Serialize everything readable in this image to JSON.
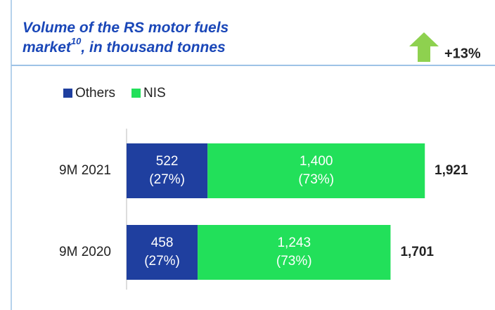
{
  "chart_data": {
    "type": "stacked_barh",
    "title": {
      "text": "Volume of the RS motor fuels market",
      "superscript": "10",
      "suffix": ", in thousand tonnes"
    },
    "annotation": "+13%",
    "categories": [
      "9M 2021",
      "9M 2020"
    ],
    "series": [
      {
        "name": "Others",
        "color": "#1f3f9f",
        "values": [
          522,
          458
        ],
        "value_labels": [
          "522",
          "458"
        ],
        "share_labels": [
          "(27%)",
          "(27%)"
        ]
      },
      {
        "name": "NIS",
        "color": "#22e05a",
        "values": [
          1400,
          1243
        ],
        "value_labels": [
          "1,400",
          "1,243"
        ],
        "share_labels": [
          "(73%)",
          "(73%)"
        ]
      }
    ],
    "totals": [
      1921,
      1701
    ],
    "total_labels": [
      "1,921",
      "1,701"
    ],
    "xlim": [
      0,
      1921
    ],
    "legend": "top-left"
  }
}
